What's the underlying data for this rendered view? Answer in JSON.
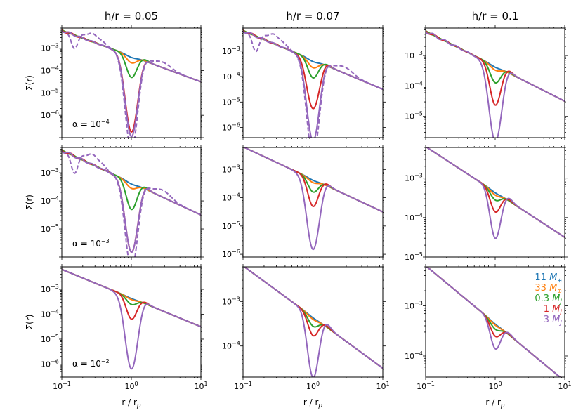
{
  "chart_data": {
    "type": "line",
    "xscale": "log",
    "yscale": "log",
    "xlabel": "r / r_p",
    "ylabel": "Σ(r)",
    "xlim": [
      0.1,
      10
    ],
    "xticks": [
      "10^-1",
      "10^0",
      "10^1"
    ],
    "column_titles": [
      "h/r = 0.05",
      "h/r = 0.07",
      "h/r = 0.1"
    ],
    "row_annotations": [
      "α = 10^-4",
      "α = 10^-3",
      "α = 10^-2"
    ],
    "series": [
      {
        "name": "11 M⊕",
        "color": "#1f77b4"
      },
      {
        "name": "33 M⊕",
        "color": "#ff7f0e"
      },
      {
        "name": "0.3 M_J",
        "color": "#2ca02c"
      },
      {
        "name": "1 M_J",
        "color": "#d62728"
      },
      {
        "name": "3 M_J",
        "color": "#9467bd"
      }
    ],
    "panels": [
      {
        "row": 0,
        "col": 0,
        "ylim": [
          1e-07,
          0.008
        ],
        "yticks": [
          -6,
          -5,
          -4,
          -3
        ],
        "depths": [
          0.15,
          1.0,
          8,
          2500,
          4000
        ],
        "dashed_3MJ": true
      },
      {
        "row": 0,
        "col": 1,
        "ylim": [
          4e-07,
          0.008
        ],
        "yticks": [
          -6,
          -5,
          -4,
          -3
        ],
        "depths": [
          0.15,
          1.0,
          4,
          80,
          1500
        ],
        "dashed_3MJ": true
      },
      {
        "row": 0,
        "col": 2,
        "ylim": [
          2e-06,
          0.008
        ],
        "yticks": [
          -5,
          -4,
          -3
        ],
        "depths": [
          0.08,
          0.35,
          2.5,
          18,
          300
        ],
        "dashed_3MJ": false
      },
      {
        "row": 1,
        "col": 0,
        "ylim": [
          1e-06,
          0.008
        ],
        "yticks": [
          -5,
          -4,
          -3
        ],
        "depths": [
          0.12,
          0.6,
          8,
          300,
          300
        ],
        "dashed_3MJ": true
      },
      {
        "row": 1,
        "col": 1,
        "ylim": [
          8e-07,
          0.006
        ],
        "yticks": [
          -6,
          -5,
          -4,
          -3
        ],
        "depths": [
          0.08,
          0.3,
          1.8,
          8,
          300
        ],
        "dashed_3MJ": false
      },
      {
        "row": 1,
        "col": 2,
        "ylim": [
          1e-05,
          0.006
        ],
        "yticks": [
          -5,
          -4,
          -3
        ],
        "depths": [
          0.05,
          0.2,
          0.6,
          2.2,
          14
        ],
        "dashed_3MJ": false
      },
      {
        "row": 2,
        "col": 0,
        "ylim": [
          3e-07,
          0.008
        ],
        "yticks": [
          -6,
          -5,
          -4,
          -3
        ],
        "depths": [
          0.05,
          0.15,
          0.8,
          6,
          700
        ],
        "dashed_3MJ": false
      },
      {
        "row": 2,
        "col": 1,
        "ylim": [
          2e-05,
          0.006
        ],
        "yticks": [
          -4,
          -3
        ],
        "depths": [
          0.04,
          0.12,
          0.6,
          1.6,
          22
        ],
        "dashed_3MJ": false
      },
      {
        "row": 2,
        "col": 2,
        "ylim": [
          3.8e-05,
          0.006
        ],
        "yticks": [
          -4,
          -3
        ],
        "depths": [
          0.03,
          0.08,
          0.3,
          0.8,
          2.2
        ],
        "dashed_3MJ": false
      }
    ]
  }
}
